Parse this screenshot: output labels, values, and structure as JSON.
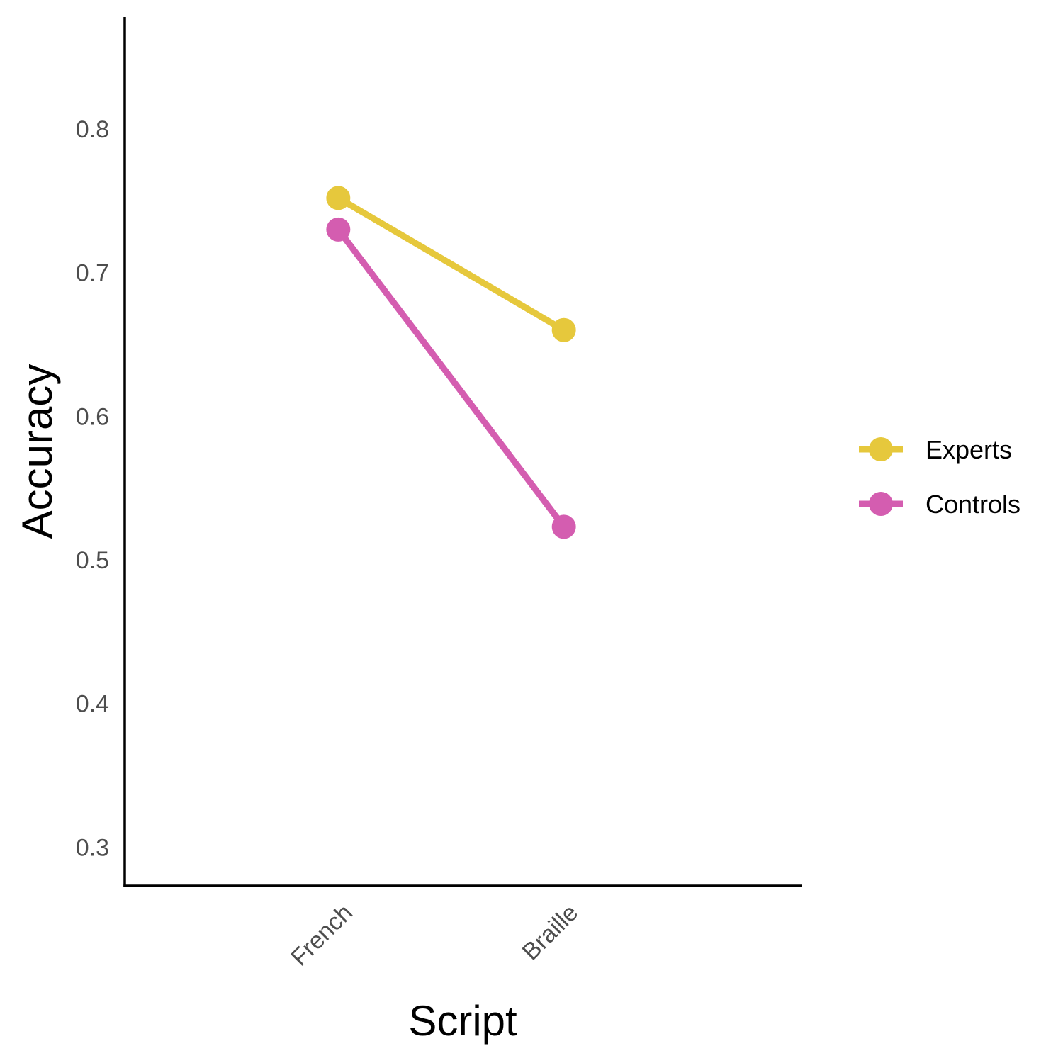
{
  "chart_data": {
    "type": "line",
    "title": "",
    "xlabel": "Script",
    "ylabel": "Accuracy",
    "categories": [
      "French",
      "Braille"
    ],
    "yticks": [
      "0.3",
      "0.4",
      "0.5",
      "0.6",
      "0.7",
      "0.8"
    ],
    "ylim": [
      0.273,
      0.878
    ],
    "grid": false,
    "legend_position": "right",
    "series": [
      {
        "name": "Experts",
        "color": "#E6C83C",
        "values": [
          0.752,
          0.66
        ]
      },
      {
        "name": "Controls",
        "color": "#D45DB0",
        "values": [
          0.73,
          0.523
        ]
      }
    ]
  }
}
